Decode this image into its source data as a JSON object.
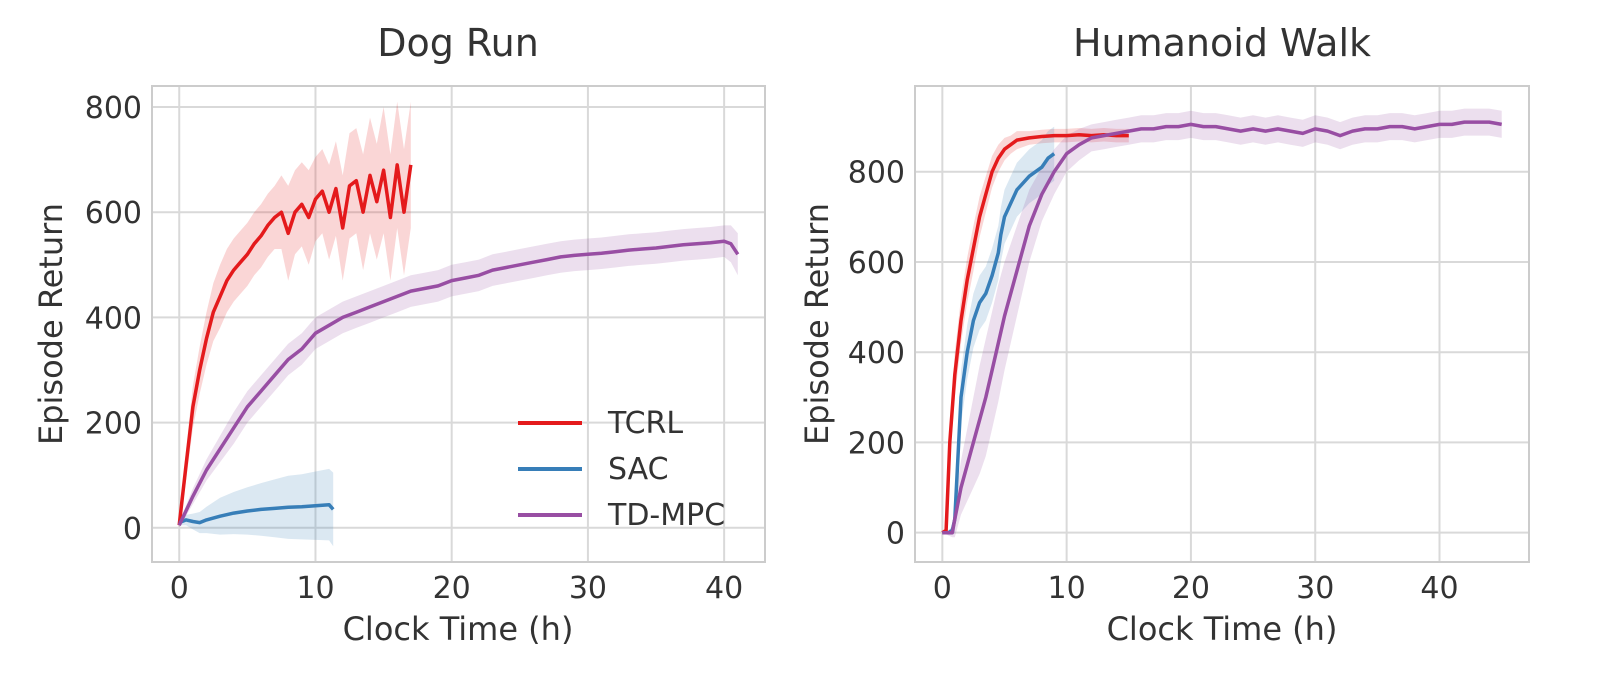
{
  "colors": {
    "TCRL": "#e41a1c",
    "SAC": "#377eb8",
    "TD-MPC": "#984ea3",
    "grid": "#d9d9d9",
    "text": "#333333"
  },
  "chart_data": [
    {
      "type": "line",
      "title": "Dog Run",
      "xlabel": "Clock Time (h)",
      "ylabel": "Episode Return",
      "xlim": [
        -2,
        43
      ],
      "ylim": [
        -65,
        840
      ],
      "xticks": [
        0,
        10,
        20,
        30,
        40
      ],
      "yticks": [
        0,
        200,
        400,
        600,
        800
      ],
      "grid": true,
      "legend": "lower-right",
      "series": [
        {
          "name": "TCRL",
          "x": [
            0,
            0.5,
            1,
            1.5,
            2,
            2.5,
            3,
            3.5,
            4,
            4.5,
            5,
            5.5,
            6,
            6.5,
            7,
            7.5,
            8,
            8.5,
            9,
            9.5,
            10,
            10.5,
            11,
            11.5,
            12,
            12.5,
            13,
            13.5,
            14,
            14.5,
            15,
            15.5,
            16,
            16.5,
            17
          ],
          "y": [
            5,
            120,
            230,
            300,
            360,
            410,
            440,
            470,
            490,
            505,
            520,
            540,
            555,
            575,
            590,
            600,
            560,
            600,
            615,
            590,
            625,
            640,
            600,
            645,
            570,
            650,
            660,
            600,
            670,
            620,
            680,
            590,
            690,
            600,
            690
          ],
          "band": [
            5,
            30,
            40,
            45,
            50,
            55,
            60,
            60,
            60,
            60,
            60,
            60,
            60,
            60,
            60,
            70,
            90,
            80,
            80,
            90,
            80,
            80,
            90,
            90,
            100,
            100,
            100,
            110,
            110,
            110,
            120,
            120,
            120,
            120,
            120
          ]
        },
        {
          "name": "SAC",
          "x": [
            0,
            0.5,
            1,
            1.5,
            2,
            3,
            4,
            5,
            6,
            7,
            8,
            9,
            10,
            11,
            11.3
          ],
          "y": [
            10,
            15,
            12,
            10,
            15,
            22,
            28,
            32,
            35,
            37,
            39,
            40,
            42,
            44,
            35
          ],
          "band": [
            5,
            10,
            15,
            20,
            25,
            35,
            40,
            45,
            50,
            55,
            60,
            62,
            65,
            68,
            70
          ]
        },
        {
          "name": "TD-MPC",
          "x": [
            0,
            1,
            2,
            3,
            4,
            5,
            6,
            7,
            8,
            9,
            10,
            11,
            12,
            13,
            14,
            15,
            16,
            17,
            18,
            19,
            20,
            21,
            22,
            23,
            24,
            25,
            26,
            27,
            28,
            29,
            30,
            31,
            32,
            33,
            34,
            35,
            36,
            37,
            38,
            39,
            40,
            40.5,
            41
          ],
          "y": [
            5,
            60,
            110,
            150,
            190,
            230,
            260,
            290,
            320,
            340,
            370,
            385,
            400,
            410,
            420,
            430,
            440,
            450,
            455,
            460,
            470,
            475,
            480,
            490,
            495,
            500,
            505,
            510,
            515,
            518,
            520,
            522,
            525,
            528,
            530,
            532,
            535,
            538,
            540,
            542,
            545,
            540,
            520
          ],
          "band": [
            5,
            15,
            20,
            25,
            30,
            30,
            30,
            30,
            30,
            30,
            30,
            30,
            30,
            30,
            30,
            30,
            30,
            30,
            30,
            30,
            30,
            30,
            30,
            30,
            30,
            30,
            30,
            30,
            30,
            30,
            30,
            30,
            30,
            30,
            30,
            30,
            30,
            30,
            30,
            30,
            30,
            35,
            40
          ]
        }
      ]
    },
    {
      "type": "line",
      "title": "Humanoid Walk",
      "xlabel": "Clock Time (h)",
      "ylabel": "Episode Return",
      "xlim": [
        -2.2,
        47.2
      ],
      "ylim": [
        -65,
        990
      ],
      "xticks": [
        0,
        10,
        20,
        30,
        40
      ],
      "yticks": [
        0,
        200,
        400,
        600,
        800
      ],
      "grid": true,
      "series": [
        {
          "name": "TCRL",
          "x": [
            0,
            0.3,
            0.6,
            1,
            1.5,
            2,
            2.5,
            3,
            3.5,
            4,
            4.5,
            5,
            5.5,
            6,
            7,
            8,
            9,
            10,
            11,
            12,
            13,
            14,
            15
          ],
          "y": [
            0,
            5,
            200,
            350,
            470,
            560,
            630,
            700,
            750,
            800,
            830,
            850,
            860,
            870,
            875,
            878,
            880,
            880,
            882,
            880,
            882,
            880,
            880
          ],
          "band": [
            0,
            5,
            40,
            50,
            50,
            50,
            50,
            45,
            40,
            35,
            30,
            25,
            20,
            20,
            15,
            15,
            15,
            15,
            15,
            15,
            15,
            15,
            15
          ]
        },
        {
          "name": "SAC",
          "x": [
            0,
            0.5,
            0.8,
            1,
            1.5,
            2,
            2.5,
            3,
            3.5,
            4,
            4.5,
            4.7,
            5,
            5.5,
            6,
            7,
            8,
            8.5,
            9
          ],
          "y": [
            0,
            0,
            5,
            30,
            300,
            400,
            470,
            510,
            530,
            570,
            620,
            660,
            700,
            730,
            760,
            790,
            810,
            830,
            840
          ],
          "band": [
            0,
            5,
            10,
            30,
            60,
            60,
            60,
            60,
            60,
            60,
            60,
            60,
            60,
            60,
            60,
            60,
            60,
            60,
            60
          ]
        },
        {
          "name": "TD-MPC",
          "x": [
            0,
            0.8,
            1,
            1.5,
            2,
            2.5,
            3,
            3.5,
            4,
            4.5,
            5,
            6,
            7,
            8,
            9,
            10,
            11,
            12,
            13,
            14,
            15,
            16,
            17,
            18,
            19,
            20,
            21,
            22,
            23,
            24,
            25,
            26,
            27,
            28,
            29,
            30,
            31,
            32,
            33,
            34,
            35,
            36,
            37,
            38,
            39,
            40,
            41,
            42,
            43,
            44,
            45
          ],
          "y": [
            0,
            0,
            30,
            100,
            150,
            200,
            250,
            300,
            360,
            420,
            480,
            580,
            680,
            750,
            800,
            840,
            860,
            875,
            880,
            885,
            890,
            895,
            895,
            900,
            900,
            905,
            900,
            900,
            895,
            890,
            895,
            890,
            895,
            890,
            885,
            895,
            890,
            880,
            890,
            895,
            895,
            900,
            900,
            895,
            900,
            905,
            905,
            910,
            910,
            910,
            905
          ],
          "band": [
            0,
            10,
            40,
            60,
            80,
            100,
            120,
            130,
            130,
            130,
            120,
            100,
            80,
            60,
            50,
            40,
            35,
            30,
            30,
            30,
            30,
            30,
            30,
            30,
            30,
            30,
            30,
            30,
            30,
            30,
            30,
            30,
            30,
            30,
            30,
            30,
            30,
            30,
            30,
            30,
            30,
            30,
            30,
            30,
            30,
            30,
            30,
            30,
            30,
            30,
            30
          ]
        }
      ]
    }
  ]
}
